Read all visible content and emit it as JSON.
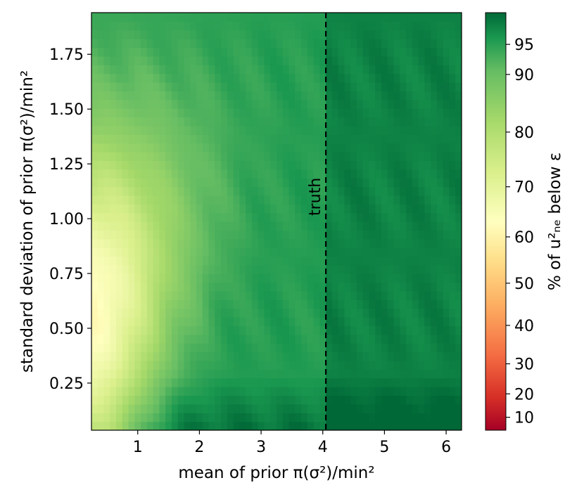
{
  "chart_data": {
    "type": "heatmap",
    "xlabel": "mean of prior π(σ²)/min²",
    "ylabel": "standard deviation of prior π(σ²)/min²",
    "xlim": [
      0.25,
      6.25
    ],
    "ylim": [
      0.035,
      1.94
    ],
    "x_ticks": [
      "1",
      "2",
      "3",
      "4",
      "5",
      "6"
    ],
    "x_tick_values": [
      1,
      2,
      3,
      4,
      5,
      6
    ],
    "y_ticks": [
      "0.25",
      "0.50",
      "0.75",
      "1.00",
      "1.25",
      "1.50",
      "1.75"
    ],
    "y_tick_values": [
      0.25,
      0.5,
      0.75,
      1.0,
      1.25,
      1.5,
      1.75
    ],
    "colorbar": {
      "label": "% of u²ₙₑ below ε",
      "ticks": [
        "10",
        "20",
        "30",
        "40",
        "50",
        "60",
        "70",
        "80",
        "90",
        "95"
      ],
      "tick_values": [
        10,
        20,
        30,
        40,
        50,
        60,
        70,
        80,
        90,
        95
      ],
      "range": [
        6,
        99
      ],
      "colormap": "RdYlGn"
    },
    "annotation": {
      "text": "truth",
      "x": 4.05,
      "linestyle": "dashed",
      "color": "#000000"
    },
    "grid": false
  }
}
